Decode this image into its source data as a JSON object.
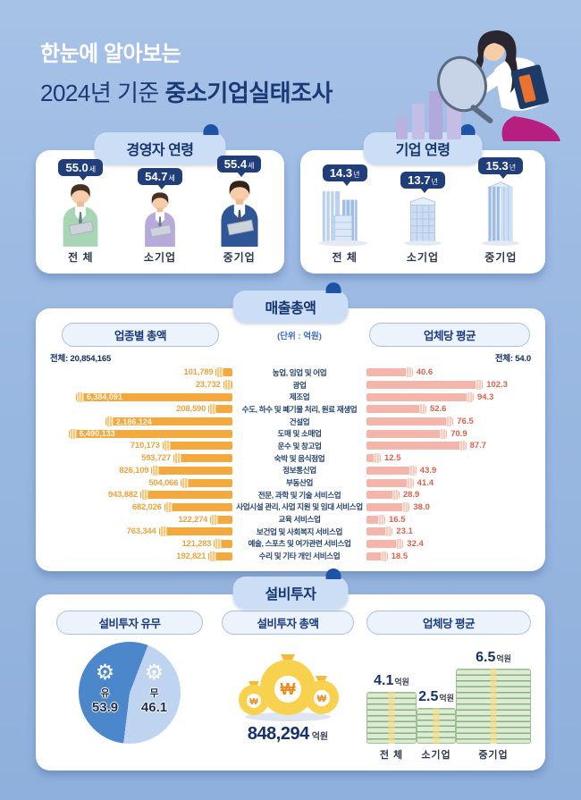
{
  "title": {
    "line1": "한눈에 알아보는",
    "line2_prefix": "2024년 기준 ",
    "line2_bold": "중소기업실태조사"
  },
  "colors": {
    "accent_navy": "#223E7A",
    "bar_orange": "#F4A93F",
    "bar_pink": "#F4B6AB",
    "value_orange": "#F0A23C",
    "value_red": "#E2604C",
    "pie_yes": "#4C86CB",
    "pie_no": "#BFD4F0"
  },
  "ceo_age": {
    "header": "경영자 연령",
    "items": [
      {
        "label": "전 체",
        "value": "55.0",
        "unit": "세"
      },
      {
        "label": "소기업",
        "value": "54.7",
        "unit": "세"
      },
      {
        "label": "중기업",
        "value": "55.4",
        "unit": "세"
      }
    ]
  },
  "firm_age": {
    "header": "기업 연령",
    "items": [
      {
        "label": "전 체",
        "value": "14.3",
        "unit": "년"
      },
      {
        "label": "소기업",
        "value": "13.7",
        "unit": "년"
      },
      {
        "label": "중기업",
        "value": "15.3",
        "unit": "년"
      }
    ]
  },
  "sales": {
    "header": "매출총액",
    "left_title": "업종별 총액",
    "unit_note": "(단위 : 억원)",
    "right_title": "업체당 평균",
    "left_total": "전체: 20,854,165",
    "right_total": "전체: 54.0",
    "rows": [
      {
        "label": "농업, 임업 및 어업",
        "total": "101,789",
        "avg": "40.6",
        "total_pct": 9,
        "avg_pct": 27.8
      },
      {
        "label": "광업",
        "total": "23,732",
        "avg": "102.3",
        "total_pct": 5,
        "avg_pct": 70
      },
      {
        "label": "제조업",
        "total": "6,384,091",
        "avg": "94.3",
        "total_pct": 85,
        "avg_pct": 64.5
      },
      {
        "label": "수도, 하수 및 폐기물 처리, 원료 재생업",
        "total": "208,590",
        "avg": "52.6",
        "total_pct": 13,
        "avg_pct": 36
      },
      {
        "label": "건설업",
        "total": "2,186,124",
        "avg": "76.5",
        "total_pct": 69,
        "avg_pct": 52.3
      },
      {
        "label": "도매 및 소매업",
        "total": "6,490,133",
        "avg": "70.9",
        "total_pct": 89,
        "avg_pct": 48.5
      },
      {
        "label": "운수 및 창고업",
        "total": "710,173",
        "avg": "87.7",
        "total_pct": 38,
        "avg_pct": 60
      },
      {
        "label": "숙박 및 음식점업",
        "total": "593,727",
        "avg": "12.5",
        "total_pct": 32,
        "avg_pct": 8.6
      },
      {
        "label": "정보통신업",
        "total": "826,109",
        "avg": "43.9",
        "total_pct": 44,
        "avg_pct": 30
      },
      {
        "label": "부동산업",
        "total": "504,066",
        "avg": "41.4",
        "total_pct": 28,
        "avg_pct": 28.3
      },
      {
        "label": "전문, 과학 및 기술 서비스업",
        "total": "943,882",
        "avg": "28.9",
        "total_pct": 50,
        "avg_pct": 19.8
      },
      {
        "label": "사업시설 관리, 사업 지원 및 임대 서비스업",
        "total": "682,026",
        "avg": "38.0",
        "total_pct": 37,
        "avg_pct": 26
      },
      {
        "label": "교육 서비스업",
        "total": "122,274",
        "avg": "16.5",
        "total_pct": 12,
        "avg_pct": 11.3
      },
      {
        "label": "보건업 및 사회복지 서비스업",
        "total": "763,344",
        "avg": "23.1",
        "total_pct": 40,
        "avg_pct": 15.8
      },
      {
        "label": "예술, 스포츠 및 여가관련 서비스업",
        "total": "121,283",
        "avg": "32.4",
        "total_pct": 10,
        "avg_pct": 22.2
      },
      {
        "label": "수리 및 기타 개인 서비스업",
        "total": "192,821",
        "avg": "18.5",
        "total_pct": 13,
        "avg_pct": 12.7
      }
    ]
  },
  "invest": {
    "header": "설비투자",
    "col1_title": "설비투자 유무",
    "col2_title": "설비투자 총액",
    "col3_title": "업체당 평균",
    "pie": {
      "yes_label": "유",
      "yes_value": "53.9",
      "no_label": "무",
      "no_value": "46.1"
    },
    "gear_glyph": "⚙",
    "check_glyph": "✓",
    "x_glyph": "✕",
    "won_glyph": "₩",
    "total_value": "848,294",
    "total_unit": "억원",
    "stacks": [
      {
        "label": "전 체",
        "value": "4.1",
        "unit": "억원"
      },
      {
        "label": "소기업",
        "value": "2.5",
        "unit": "억원"
      },
      {
        "label": "중기업",
        "value": "6.5",
        "unit": "억원"
      }
    ]
  },
  "chart_data": [
    {
      "type": "bar",
      "title": "경영자 연령",
      "ylabel": "세",
      "categories": [
        "전체",
        "소기업",
        "중기업"
      ],
      "values": [
        55.0,
        54.7,
        55.4
      ]
    },
    {
      "type": "bar",
      "title": "기업 연령",
      "ylabel": "년",
      "categories": [
        "전체",
        "소기업",
        "중기업"
      ],
      "values": [
        14.3,
        13.7,
        15.3
      ]
    },
    {
      "type": "bar",
      "title": "매출총액 - 업종별 총액 (단위: 억원)",
      "total": 20854165,
      "categories": [
        "농업, 임업 및 어업",
        "광업",
        "제조업",
        "수도, 하수 및 폐기물 처리, 원료 재생업",
        "건설업",
        "도매 및 소매업",
        "운수 및 창고업",
        "숙박 및 음식점업",
        "정보통신업",
        "부동산업",
        "전문, 과학 및 기술 서비스업",
        "사업시설 관리, 사업 지원 및 임대 서비스업",
        "교육 서비스업",
        "보건업 및 사회복지 서비스업",
        "예술, 스포츠 및 여가관련 서비스업",
        "수리 및 기타 개인 서비스업"
      ],
      "values": [
        101789,
        23732,
        6384091,
        208590,
        2186124,
        6490133,
        710173,
        593727,
        826109,
        504066,
        943882,
        682026,
        122274,
        763344,
        121283,
        192821
      ]
    },
    {
      "type": "bar",
      "title": "매출총액 - 업체당 평균 (단위: 억원)",
      "overall": 54.0,
      "categories": [
        "농업, 임업 및 어업",
        "광업",
        "제조업",
        "수도, 하수 및 폐기물 처리, 원료 재생업",
        "건설업",
        "도매 및 소매업",
        "운수 및 창고업",
        "숙박 및 음식점업",
        "정보통신업",
        "부동산업",
        "전문, 과학 및 기술 서비스업",
        "사업시설 관리, 사업 지원 및 임대 서비스업",
        "교육 서비스업",
        "보건업 및 사회복지 서비스업",
        "예술, 스포츠 및 여가관련 서비스업",
        "수리 및 기타 개인 서비스업"
      ],
      "values": [
        40.6,
        102.3,
        94.3,
        52.6,
        76.5,
        70.9,
        87.7,
        12.5,
        43.9,
        41.4,
        28.9,
        38.0,
        16.5,
        23.1,
        32.4,
        18.5
      ]
    },
    {
      "type": "pie",
      "title": "설비투자 유무 (%)",
      "categories": [
        "유",
        "무"
      ],
      "values": [
        53.9,
        46.1
      ]
    },
    {
      "type": "bar",
      "title": "설비투자 업체당 평균 (억원)",
      "categories": [
        "전체",
        "소기업",
        "중기업"
      ],
      "values": [
        4.1,
        2.5,
        6.5
      ],
      "total_label": "설비투자 총액",
      "total_value": 848294,
      "total_unit": "억원"
    }
  ]
}
